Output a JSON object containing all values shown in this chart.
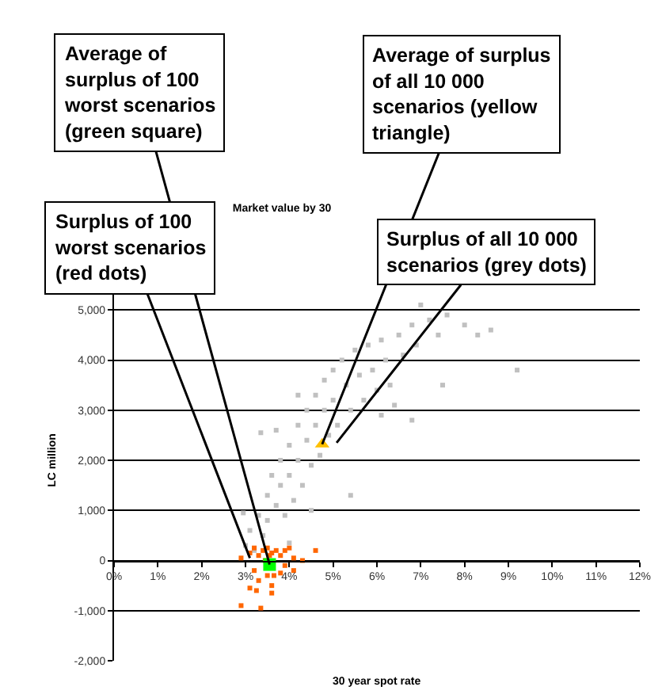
{
  "chart_data": {
    "type": "scatter",
    "title": "Market value by 30",
    "xlabel": "30 year spot rate",
    "ylabel": "LC million",
    "xlim": [
      0,
      12
    ],
    "xticks": [
      {
        "value": 0,
        "label": "0%"
      },
      {
        "value": 1,
        "label": "1%"
      },
      {
        "value": 2,
        "label": "2%"
      },
      {
        "value": 3,
        "label": "3%"
      },
      {
        "value": 4,
        "label": "4%"
      },
      {
        "value": 5,
        "label": "5%"
      },
      {
        "value": 6,
        "label": "6%"
      },
      {
        "value": 7,
        "label": "7%"
      },
      {
        "value": 8,
        "label": "8%"
      },
      {
        "value": 9,
        "label": "9%"
      },
      {
        "value": 10,
        "label": "10%"
      },
      {
        "value": 11,
        "label": "11%"
      },
      {
        "value": 12,
        "label": "12%"
      }
    ],
    "ylim": [
      -2000,
      6000
    ],
    "yticks": [
      {
        "value": -2000,
        "label": "-2,000"
      },
      {
        "value": -1000,
        "label": "-1,000"
      },
      0,
      {
        "value": 1000,
        "label": "1,000"
      },
      {
        "value": 2000,
        "label": "2,000"
      },
      {
        "value": 3000,
        "label": "3,000"
      },
      {
        "value": 4000,
        "label": "4,000"
      },
      {
        "value": 5000,
        "label": "5,000"
      },
      {
        "value": 6000,
        "label": null
      }
    ],
    "grid": "y",
    "series": [
      {
        "color": "#c0c0c0",
        "marker": "square",
        "x": [
          3.0,
          3.1,
          3.2,
          3.3,
          3.4,
          3.5,
          3.5,
          3.6,
          3.7,
          3.8,
          3.8,
          3.9,
          4.0,
          4.0,
          4.1,
          4.2,
          4.2,
          4.3,
          4.4,
          4.4,
          4.5,
          4.6,
          4.6,
          4.7,
          4.8,
          4.8,
          4.9,
          5.0,
          5.0,
          5.1,
          5.2,
          5.3,
          5.4,
          5.5,
          5.6,
          5.7,
          5.8,
          5.9,
          6.0,
          6.1,
          6.2,
          6.3,
          6.5,
          6.6,
          6.8,
          6.9,
          7.2,
          7.4,
          7.6,
          8.0,
          8.3,
          8.6,
          9.2,
          7.5,
          6.8,
          5.4,
          3.35,
          2.95,
          4.2,
          3.7,
          6.4,
          6.1,
          4.5,
          4.0,
          7.0
        ],
        "values": [
          300,
          600,
          200,
          900,
          500,
          1300,
          800,
          1700,
          1100,
          2000,
          1500,
          900,
          2300,
          1700,
          1200,
          2700,
          2000,
          1500,
          3000,
          2400,
          1900,
          3300,
          2700,
          2100,
          3600,
          3000,
          2500,
          3800,
          3200,
          2700,
          4000,
          3500,
          3000,
          4200,
          3700,
          3200,
          4300,
          3800,
          3400,
          4400,
          4000,
          3500,
          4500,
          4100,
          4700,
          4300,
          4800,
          4500,
          4900,
          4700,
          4500,
          4600,
          3800,
          3500,
          2800,
          1300,
          2550,
          950,
          3300,
          2600,
          3100,
          2900,
          1000,
          350,
          5100
        ]
      },
      {
        "color": "#ff6600",
        "marker": "square",
        "x": [
          2.9,
          3.35,
          2.9,
          3.1,
          3.2,
          3.2,
          3.3,
          3.3,
          3.4,
          3.5,
          3.5,
          3.6,
          3.6,
          3.7,
          3.8,
          3.8,
          3.9,
          3.9,
          4.0,
          4.1,
          4.1,
          4.3,
          4.6,
          3.1,
          3.25,
          3.6,
          3.45,
          3.55,
          3.65
        ],
        "values": [
          -900,
          -950,
          50,
          150,
          -200,
          250,
          100,
          -400,
          200,
          250,
          -300,
          150,
          -500,
          200,
          -250,
          100,
          200,
          -100,
          250,
          50,
          -200,
          0,
          200,
          -550,
          -600,
          -650,
          0,
          100,
          -300
        ]
      },
      {
        "color": "#00ff00",
        "marker": "square",
        "x": [
          3.55
        ],
        "values": [
          -80
        ]
      },
      {
        "color": "#ffc000",
        "marker": "triangle",
        "x": [
          4.75
        ],
        "values": [
          2320
        ]
      }
    ],
    "annotations": [
      {
        "text": "Average of surplus of 100 worst scenarios (green square)",
        "x": 3.55,
        "y": -80
      },
      {
        "text": "Average of surplus of all 10 000 scenarios (yellow triangle)",
        "x": 4.75,
        "y": 2320
      },
      {
        "text": "Surplus of 100 worst scenarios (red dots)",
        "x": 3.1,
        "y": 50
      },
      {
        "text": "Surplus of all 10 000 scenarios (grey dots)",
        "x": 5.08,
        "y": 2350
      }
    ]
  }
}
